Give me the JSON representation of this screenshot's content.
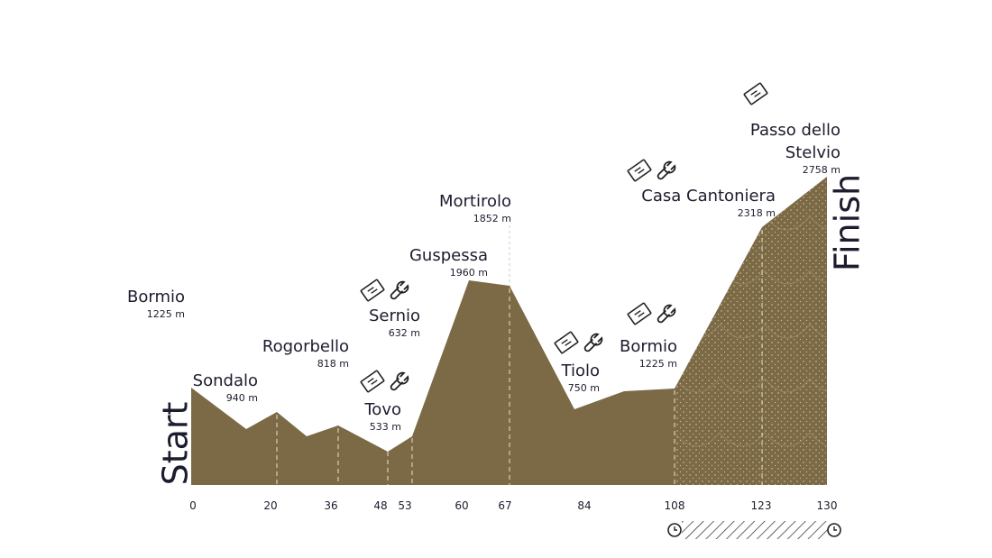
{
  "start": "Start",
  "finish": "Finish",
  "distance_ticks": [
    "0",
    "20",
    "36",
    "48",
    "53",
    "60",
    "67",
    "84",
    "108",
    "123",
    "130"
  ],
  "waypoints": [
    {
      "name_lines": [
        "Bormio"
      ],
      "elevation": "1225 m"
    },
    {
      "name_lines": [
        "Sondalo"
      ],
      "elevation": "940 m"
    },
    {
      "name_lines": [
        "Rogorbello"
      ],
      "elevation": "818 m"
    },
    {
      "name_lines": [
        "Sernio"
      ],
      "elevation": "632 m"
    },
    {
      "name_lines": [
        "Tovo"
      ],
      "elevation": "533 m"
    },
    {
      "name_lines": [
        "Guspessa"
      ],
      "elevation": "1960 m"
    },
    {
      "name_lines": [
        "Mortirolo"
      ],
      "elevation": "1852 m"
    },
    {
      "name_lines": [
        "Tiolo"
      ],
      "elevation": "750 m"
    },
    {
      "name_lines": [
        "Bormio"
      ],
      "elevation": "1225 m"
    },
    {
      "name_lines": [
        "Casa Cantoniera"
      ],
      "elevation": "2318 m"
    },
    {
      "name_lines": [
        "Passo dello",
        "Stelvio"
      ],
      "elevation": "2758 m"
    }
  ]
}
